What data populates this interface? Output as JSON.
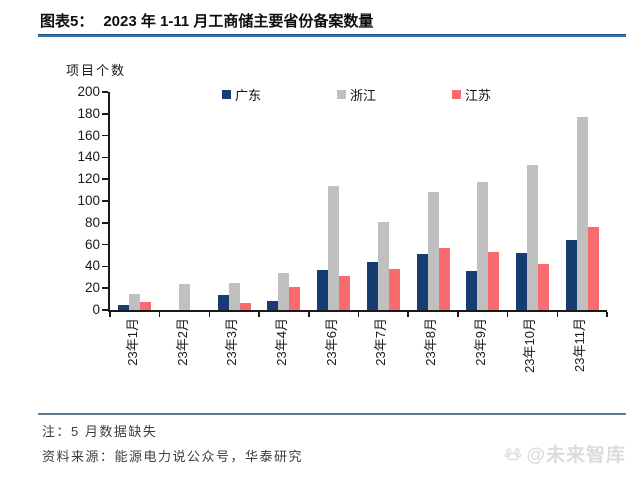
{
  "header": {
    "figure_label": "图表5：",
    "title": "2023 年 1-11 月工商储主要省份备案数量"
  },
  "chart_data": {
    "type": "bar",
    "title": "2023年1-11月工商储主要省份备案数量",
    "ylabel": "项目个数",
    "xlabel": "",
    "ylim": [
      0,
      200
    ],
    "ytick_step": 20,
    "grid": false,
    "legend_position": "top",
    "categories": [
      "23年1月",
      "23年2月",
      "23年3月",
      "23年4月",
      "23年6月",
      "23年7月",
      "23年8月",
      "23年9月",
      "23年10月",
      "23年11月"
    ],
    "series": [
      {
        "key": "guangdong",
        "name": "广东",
        "color": "#163d72",
        "values": [
          5,
          0,
          14,
          8,
          37,
          44,
          51,
          36,
          52,
          64
        ]
      },
      {
        "key": "zhejiang",
        "name": "浙江",
        "color": "#c0c0c0",
        "values": [
          15,
          24,
          25,
          34,
          114,
          81,
          108,
          117,
          133,
          177
        ]
      },
      {
        "key": "jiangsu",
        "name": "江苏",
        "color": "#f96b6e",
        "values": [
          7,
          0,
          6,
          21,
          31,
          38,
          57,
          53,
          42,
          76
        ]
      }
    ]
  },
  "notes": {
    "missing_data": "注：5 月数据缺失",
    "source": "资料来源：能源电力说公众号，华泰研究"
  },
  "watermark": {
    "text": "@未来智库"
  },
  "colors": {
    "title_underline": "#2e74b5",
    "bottom_divider": "#5f7788",
    "axis": "#1a1a1a"
  }
}
